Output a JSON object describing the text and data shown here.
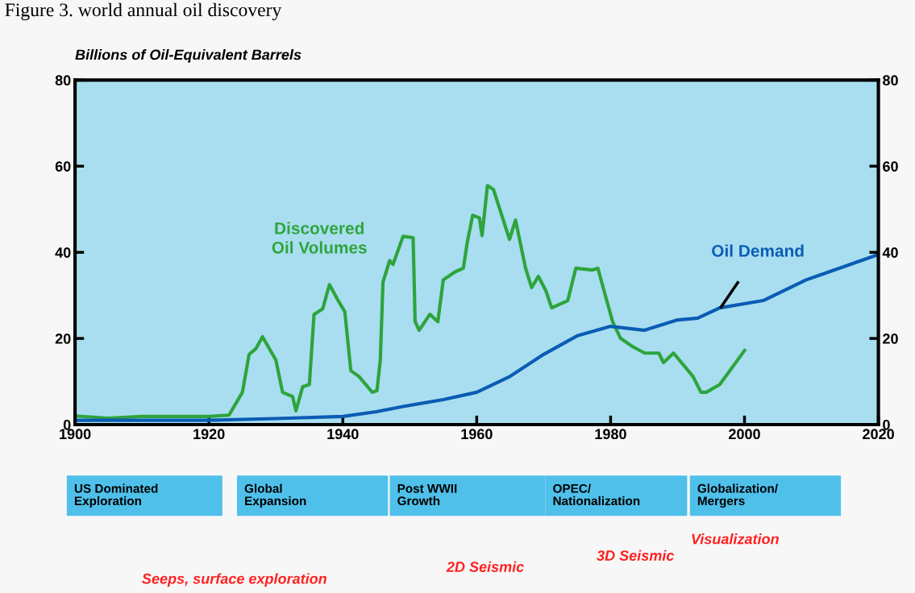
{
  "chart_data": {
    "type": "line",
    "title": "Figure 3. world annual oil discovery",
    "ylabel": "Billions of Oil-Equivalent Barrels",
    "xlim": [
      1900,
      2020
    ],
    "xticks": [
      1900,
      1920,
      1940,
      1960,
      1980,
      2000,
      2020
    ],
    "ylim": [
      0,
      80
    ],
    "yticks": [
      0,
      20,
      40,
      60,
      80
    ],
    "y2lim": [
      0,
      80
    ],
    "y2ticks": [
      0,
      20,
      40,
      60,
      80
    ],
    "grid": false,
    "legend": false,
    "marker": "none",
    "line_style": "solid",
    "series": [
      {
        "name": "Discovered\nOil Volumes",
        "color": "#2ea43c",
        "x": [
          1900,
          1905,
          1910,
          1920,
          1923,
          1925,
          1926,
          1927,
          1928,
          1930,
          1931,
          1932.5,
          1933,
          1934,
          1935,
          1935.7,
          1937,
          1938,
          1939.3,
          1940.3,
          1941.2,
          1942.4,
          1944.4,
          1945.1,
          1945.6,
          1946,
          1947,
          1947.5,
          1949,
          1950.5,
          1950.8,
          1951.4,
          1953,
          1954.2,
          1955,
          1956.8,
          1958,
          1958.6,
          1959.4,
          1960.4,
          1960.8,
          1961.6,
          1962.5,
          1964.9,
          1965.8,
          1966.4,
          1967.3,
          1968.2,
          1969.2,
          1970.3,
          1971.2,
          1973.6,
          1974.8,
          1977.3,
          1978.1,
          1979,
          1980.3,
          1981.5,
          1983.3,
          1985.1,
          1987.2,
          1987.9,
          1989.4,
          1992.3,
          1993.5,
          1994.3,
          1996.3,
          2000
        ],
        "values": [
          2.0,
          1.5,
          1.9,
          1.9,
          2.2,
          7.5,
          16.3,
          17.6,
          20.4,
          15,
          7.5,
          6.5,
          3.2,
          8.8,
          9.3,
          25.6,
          26.9,
          32.5,
          28.8,
          26.2,
          12.5,
          11.2,
          7.5,
          7.9,
          15,
          33.1,
          38.1,
          37.2,
          43.7,
          43.4,
          23.9,
          21.9,
          25.6,
          23.9,
          33.6,
          35.5,
          36.3,
          42.4,
          48.6,
          48,
          43.9,
          55.5,
          54.6,
          43,
          47.5,
          43,
          36.3,
          31.8,
          34.4,
          31.2,
          27.1,
          28.8,
          36.3,
          35.9,
          36.3,
          31.2,
          23.9,
          20,
          18.1,
          16.6,
          16.6,
          14.4,
          16.6,
          11.2,
          7.5,
          7.5,
          9.3,
          17.2
        ]
      },
      {
        "name": "Oil Demand",
        "color": "#0a5cb4",
        "x": [
          1900,
          1920,
          1930,
          1940,
          1945,
          1949,
          1955,
          1960,
          1965,
          1970,
          1975,
          1980,
          1985,
          1990,
          1993,
          1996.3,
          2002.8,
          2009.2,
          2020
        ],
        "values": [
          1.0,
          1.0,
          1.4,
          1.9,
          3.0,
          4.2,
          5.8,
          7.5,
          11.2,
          16.3,
          20.6,
          22.8,
          21.9,
          24.3,
          24.7,
          27.1,
          28.8,
          33.6,
          39.5
        ]
      }
    ],
    "annotations": [
      "US Dominated\nExploration",
      "Global\nExpansion",
      "Post WWII\nGrowth",
      "OPEC/\nNationalization",
      "Globalization/\nMergers",
      "Seeps, surface exploration",
      "2D Seismic",
      "3D Seismic",
      "Visualization"
    ]
  }
}
